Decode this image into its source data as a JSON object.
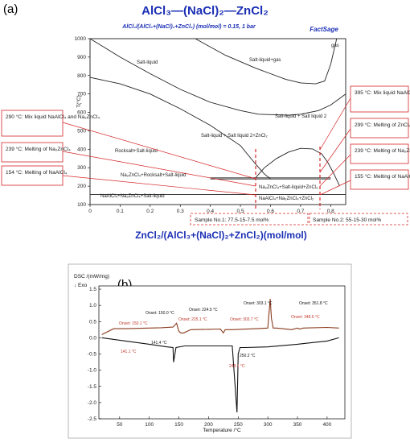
{
  "phase_diagram": {
    "panel_label": "(a)",
    "title": "AlCl₃—(NaCl)₂—ZnCl₂",
    "subtitle": "AlCl₃/(AlCl₃+(NaCl)₂+ZnCl₂) (mol/mol) = 0.15, 1 bar",
    "logo": "FactSage",
    "xlabel": "ZnCl₂/(AlCl₃+(NaCl)₂+ZnCl₂)(mol/mol)",
    "ylabel": "T(°C)",
    "regions": [
      "Salt-liquid",
      "Salt-liquid+gas",
      "gas",
      "Salt-liquid + Salt liquid 2+ZnCl₂",
      "Salt-liquid + Salt liquid 2",
      "Rocksalt+Salt-liquid",
      "Na₂ZnCl₄+Rocksalt+Salt-liquid",
      "Na₂ZnCl₄+Salt-liquid+ZnCl₂",
      "NaAlCl₄+Na₂ZnCl₄+Salt-liquid",
      "NaAlCl₄+Na₂ZnCl₄+ZnCl₂"
    ],
    "callouts_left": [
      "290 °C: Mix liquid NaAlCl₄ and Na₂ZnCl₄",
      "239 °C: Melting of Na₂ZnCl₄",
      "154 °C: Melting of NaAlCl₄"
    ],
    "callouts_right": [
      "395 °C: Mix liquid NaAlCl₄ and Na₂ZnCl₄",
      "299 °C: Melting of ZnCl₂",
      "239 °C: Melting of Na₂ZnCl₄",
      "155 °C: Melting of NaAlCl₄"
    ],
    "samples": [
      "Sample No.1: 77.5-15-7.5 mol%",
      "Sample No.2: 55-15-30 mol%"
    ]
  },
  "dsc": {
    "panel_label": "(b)",
    "ylabel": "DSC /(mW/mg)",
    "exo_label": "↓ Exo",
    "xlabel": "Temperature /°C",
    "heating_onsets": [
      "Onset: 150.0 °C",
      "Onset: 224.5 °C",
      "Onset: 303.1 °C",
      "Onset: 351.8 °C"
    ],
    "cooling_onsets": [
      "Onset: 150.1 °C",
      "Onset: 225.1 °C",
      "Onset: 303.7 °C",
      "Onset: 348.6 °C"
    ],
    "down_labels": [
      "141.4 °C",
      "141.1 °C",
      "250.2 °C",
      "248.1 °C"
    ]
  },
  "chart_data": [
    {
      "type": "line",
      "title": "AlCl₃—(NaCl)₂—ZnCl₂",
      "xlabel": "ZnCl₂/(AlCl₃+(NaCl)₂+ZnCl₂)(mol/mol)",
      "ylabel": "T(°C)",
      "xlim": [
        0,
        0.85
      ],
      "ylim": [
        100,
        1000
      ],
      "x_ticks": [
        "0",
        "0.1",
        "0.2",
        "0.3",
        "0.4",
        "0.5",
        "0.6",
        "0.7",
        "0.8"
      ],
      "y_ticks": [
        "100",
        "200",
        "300",
        "400",
        "500",
        "600",
        "700",
        "800",
        "900",
        "1000"
      ],
      "series": [
        {
          "x": [
            0,
            0.05,
            0.1,
            0.2,
            0.3,
            0.4,
            0.5,
            0.56,
            0.6,
            0.66,
            0.7,
            0.76,
            0.8,
            0.85
          ],
          "y": [
            1000,
            950,
            900,
            810,
            725,
            655,
            610,
            590,
            588,
            585,
            590,
            610,
            640,
            700
          ]
        },
        {
          "x": [
            0,
            0.1,
            0.2,
            0.3,
            0.4,
            0.5,
            0.55,
            0.58,
            0.6
          ],
          "y": [
            790,
            755,
            700,
            620,
            530,
            420,
            320,
            265,
            240
          ]
        },
        {
          "x": [
            0.35,
            0.45,
            0.55,
            0.6,
            0.65,
            0.7,
            0.75,
            0.78,
            0.8,
            0.82
          ],
          "y": [
            1000,
            910,
            840,
            810,
            780,
            760,
            755,
            770,
            860,
            1000
          ]
        },
        {
          "x": [
            0.55,
            0.58,
            0.62,
            0.66,
            0.7,
            0.74,
            0.77,
            0.79,
            0.81,
            0.83
          ],
          "y": [
            245,
            300,
            350,
            385,
            405,
            402,
            375,
            330,
            270,
            200
          ]
        },
        {
          "x": [
            0,
            0.3,
            0.6,
            0.8,
            0.85
          ],
          "y": [
            155,
            155,
            155,
            155,
            155
          ]
        },
        {
          "x": [
            0.4,
            0.6,
            0.77,
            0.8
          ],
          "y": [
            239,
            239,
            239,
            239
          ]
        },
        {
          "x": [
            0.4,
            0.6,
            0.8
          ],
          "y": [
            245,
            245,
            245
          ]
        }
      ]
    },
    {
      "type": "line",
      "xlabel": "Temperature /°C",
      "ylabel": "DSC /(mW/mg)",
      "xlim": [
        15,
        430
      ],
      "ylim": [
        -2.5,
        1.6
      ],
      "x_ticks": [
        "50",
        "100",
        "150",
        "200",
        "250",
        "300",
        "350",
        "400"
      ],
      "y_ticks": [
        "1.5",
        "1.0",
        "0.5",
        "0.0",
        "-0.5",
        "-1.0",
        "-1.5",
        "-2.0",
        "-2.5"
      ],
      "series": [
        {
          "x": [
            20,
            40,
            60,
            80,
            100,
            120,
            140,
            146,
            150,
            153,
            158,
            170,
            200,
            220,
            225,
            228,
            240,
            280,
            300,
            304,
            306,
            309,
            314,
            325,
            340,
            350,
            353,
            360,
            400,
            420
          ],
          "y": [
            0.1,
            0.28,
            0.28,
            0.29,
            0.3,
            0.31,
            0.33,
            0.45,
            0.2,
            0.15,
            0.15,
            0.25,
            0.26,
            0.27,
            0.15,
            0.25,
            0.25,
            0.28,
            0.3,
            1.2,
            0.6,
            0.3,
            0.3,
            0.28,
            0.25,
            0.3,
            0.27,
            0.3,
            0.32,
            0.3
          ]
        },
        {
          "x": [
            20,
            60,
            100,
            130,
            140,
            141,
            145,
            160,
            200,
            240,
            248,
            250,
            253,
            262,
            300,
            350,
            400,
            420
          ],
          "y": [
            0.0,
            -0.1,
            -0.2,
            -0.28,
            -0.3,
            -0.75,
            -0.3,
            -0.25,
            -0.25,
            -0.25,
            -2.3,
            -0.5,
            -0.3,
            -0.3,
            -0.28,
            -0.2,
            -0.1,
            0.0
          ]
        }
      ]
    }
  ]
}
